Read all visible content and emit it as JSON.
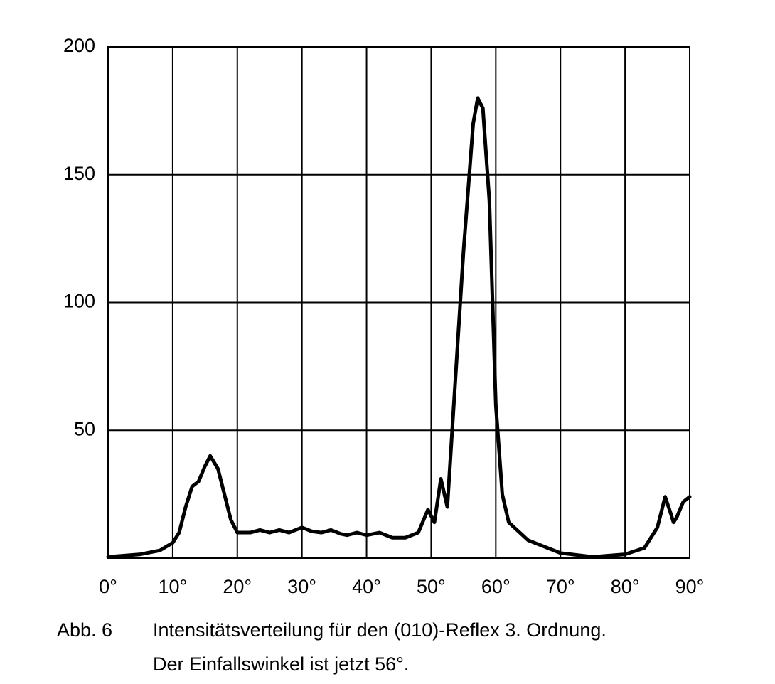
{
  "chart_data": {
    "type": "line",
    "x": [
      0,
      5,
      8,
      10,
      11,
      12,
      13,
      14,
      15,
      15.8,
      17,
      18,
      19,
      20,
      22,
      23.5,
      25,
      26.5,
      28,
      30,
      31.5,
      33,
      34.5,
      36,
      37,
      38.5,
      40,
      42,
      44,
      46,
      48,
      49.5,
      50.5,
      51.5,
      52.5,
      53.5,
      55,
      56.5,
      57.2,
      58,
      59,
      60,
      61,
      62,
      65,
      70,
      75,
      80,
      83,
      85,
      86.2,
      87,
      87.5,
      88,
      89,
      90
    ],
    "series": [
      {
        "color": "#000000",
        "values": [
          0.5,
          1.5,
          3,
          6,
          10,
          20,
          28,
          30,
          36,
          40,
          35,
          25,
          15,
          10,
          10,
          11,
          10,
          11,
          10,
          12,
          10.5,
          10,
          11,
          9.5,
          9,
          10,
          9,
          10,
          8,
          8,
          10,
          19,
          14,
          31,
          20,
          60,
          120,
          170,
          180,
          176,
          140,
          60,
          25,
          14,
          7,
          2,
          0.5,
          1.5,
          4,
          12,
          24,
          18,
          14,
          16,
          22,
          24
        ]
      }
    ],
    "xlim": [
      0,
      90
    ],
    "xticks": [
      {
        "value": 0,
        "label": "0°"
      },
      {
        "value": 10,
        "label": "10°"
      },
      {
        "value": 20,
        "label": "20°"
      },
      {
        "value": 30,
        "label": "30°"
      },
      {
        "value": 40,
        "label": "40°"
      },
      {
        "value": 50,
        "label": "50°"
      },
      {
        "value": 60,
        "label": "60°"
      },
      {
        "value": 70,
        "label": "70°"
      },
      {
        "value": 80,
        "label": "80°"
      },
      {
        "value": 90,
        "label": "90°"
      }
    ],
    "ylim": [
      0,
      200
    ],
    "yticks": [
      50,
      100,
      150,
      200
    ],
    "grid": true,
    "caption": {
      "number": "Abb. 6",
      "line1": "Intensitätsverteilung für den (010)-Reflex 3. Ordnung.",
      "line2": "Der Einfallswinkel ist jetzt 56°."
    }
  }
}
